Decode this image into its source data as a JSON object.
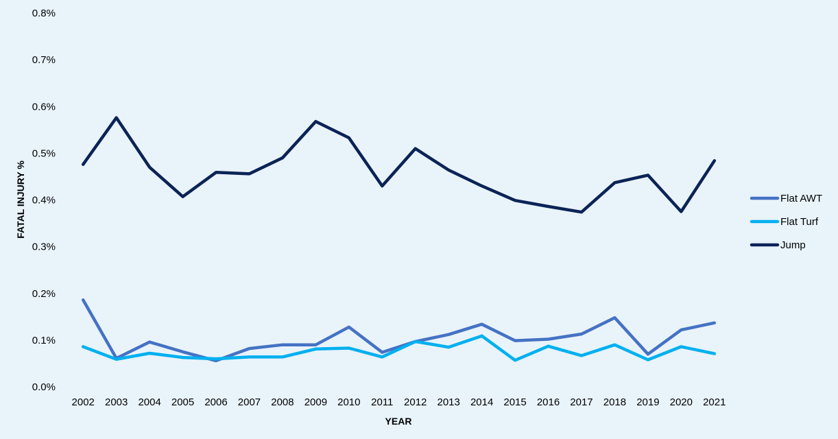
{
  "chart_data": {
    "type": "line",
    "xlabel": "YEAR",
    "ylabel": "FATAL INJURY %",
    "ylim": [
      0,
      0.8
    ],
    "yticks": [
      "0.0%",
      "0.1%",
      "0.2%",
      "0.3%",
      "0.4%",
      "0.5%",
      "0.6%",
      "0.7%",
      "0.8%"
    ],
    "ytick_values": [
      0,
      0.1,
      0.2,
      0.3,
      0.4,
      0.5,
      0.6,
      0.7,
      0.8
    ],
    "categories": [
      "2002",
      "2003",
      "2004",
      "2005",
      "2006",
      "2007",
      "2008",
      "2009",
      "2010",
      "2011",
      "2012",
      "2013",
      "2014",
      "2015",
      "2016",
      "2017",
      "2018",
      "2019",
      "2020",
      "2021"
    ],
    "grid": false,
    "legend_position": "right",
    "series": [
      {
        "name": "Flat AWT",
        "color": "#4472c4",
        "values": [
          0.186,
          0.061,
          0.096,
          0.075,
          0.056,
          0.082,
          0.09,
          0.09,
          0.128,
          0.074,
          0.097,
          0.112,
          0.134,
          0.099,
          0.102,
          0.113,
          0.148,
          0.07,
          0.122,
          0.137
        ]
      },
      {
        "name": "Flat Turf",
        "color": "#00b0f0",
        "values": [
          0.086,
          0.059,
          0.072,
          0.063,
          0.06,
          0.064,
          0.064,
          0.081,
          0.083,
          0.064,
          0.097,
          0.085,
          0.109,
          0.057,
          0.087,
          0.067,
          0.09,
          0.058,
          0.086,
          0.071
        ]
      },
      {
        "name": "Jump",
        "color": "#0b2356",
        "values": [
          0.476,
          0.576,
          0.47,
          0.407,
          0.459,
          0.456,
          0.49,
          0.568,
          0.533,
          0.43,
          0.51,
          0.464,
          0.43,
          0.399,
          0.386,
          0.374,
          0.437,
          0.453,
          0.375,
          0.484
        ]
      }
    ]
  }
}
